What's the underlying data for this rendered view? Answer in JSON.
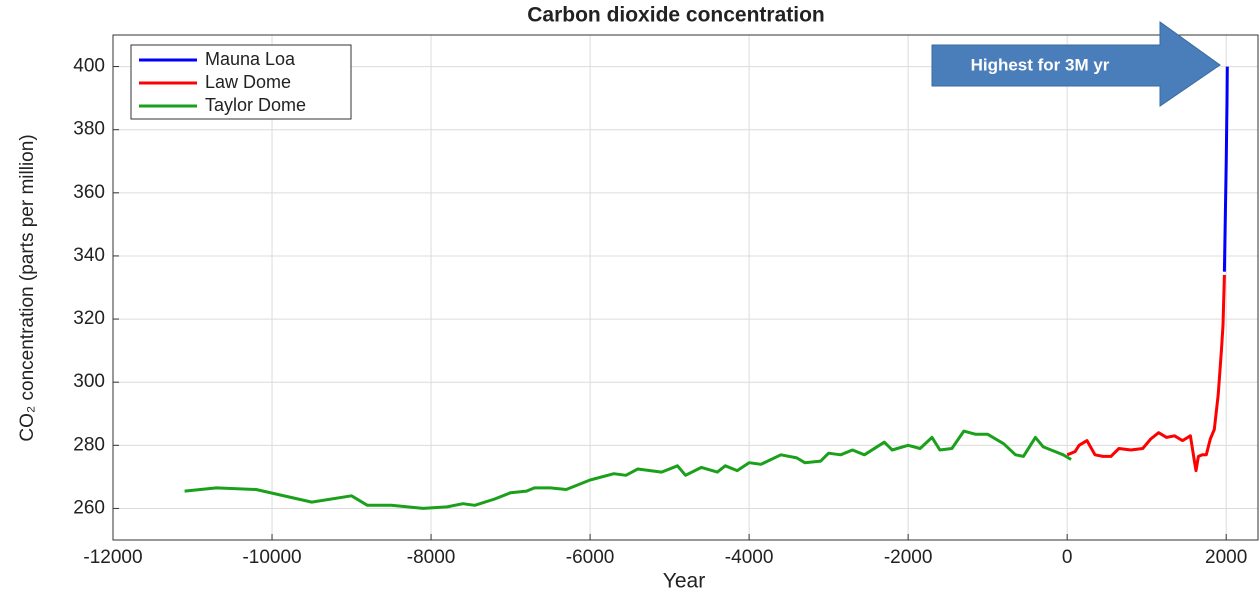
{
  "chart_data": {
    "type": "line",
    "title": "Carbon dioxide concentration",
    "x_label": "Year",
    "y_label": "CO₂ concentration (parts per million)",
    "annotation": "Highest for 3M yr",
    "xlim": [
      -12000,
      2400
    ],
    "ylim": [
      250,
      410
    ],
    "xticks": [
      -12000,
      -10000,
      -8000,
      -6000,
      -4000,
      -2000,
      0,
      2000
    ],
    "yticks": [
      260,
      280,
      300,
      320,
      340,
      360,
      380,
      400
    ],
    "grid": true,
    "legend": "upper left",
    "series": [
      {
        "name": "Mauna Loa",
        "color": "#0000ff",
        "x": [
          1978,
          1990,
          2000,
          2010,
          2014
        ],
        "values": [
          335,
          354,
          369,
          389,
          400
        ]
      },
      {
        "name": "Law Dome",
        "color": "#ff0000",
        "x": [
          0,
          100,
          150,
          250,
          350,
          450,
          550,
          650,
          800,
          950,
          1050,
          1150,
          1250,
          1350,
          1450,
          1550,
          1600,
          1620,
          1650,
          1700,
          1750,
          1800,
          1850,
          1900,
          1940,
          1960,
          1978
        ],
        "values": [
          277,
          278,
          280,
          281.5,
          277,
          276.5,
          276.5,
          279,
          278.5,
          279,
          282,
          284,
          282.5,
          283,
          281.5,
          283,
          275,
          272,
          276.5,
          277,
          277,
          282,
          285,
          296,
          310,
          318,
          334
        ]
      },
      {
        "name": "Taylor Dome",
        "color": "#1aa01a",
        "x": [
          -11100,
          -10700,
          -10200,
          -9500,
          -9000,
          -8800,
          -8500,
          -8100,
          -7800,
          -7600,
          -7450,
          -7200,
          -7000,
          -6800,
          -6700,
          -6500,
          -6300,
          -6000,
          -5700,
          -5550,
          -5400,
          -5100,
          -4900,
          -4800,
          -4600,
          -4400,
          -4300,
          -4150,
          -4000,
          -3850,
          -3600,
          -3400,
          -3300,
          -3100,
          -3000,
          -2850,
          -2700,
          -2550,
          -2300,
          -2200,
          -2000,
          -1850,
          -1700,
          -1600,
          -1450,
          -1300,
          -1150,
          -1000,
          -800,
          -650,
          -550,
          -400,
          -300,
          -150,
          -50,
          50
        ],
        "values": [
          265.5,
          266.5,
          266,
          262,
          264,
          261,
          261,
          260,
          260.5,
          261.5,
          261,
          263,
          265,
          265.5,
          266.5,
          266.5,
          266,
          269,
          271,
          270.5,
          272.5,
          271.5,
          273.5,
          270.5,
          273,
          271.5,
          273.5,
          272,
          274.5,
          274,
          277,
          276,
          274.5,
          275,
          277.5,
          277,
          278.5,
          277,
          281,
          278.5,
          280,
          279,
          282.5,
          278.5,
          279,
          284.5,
          283.5,
          283.5,
          280.5,
          277,
          276.5,
          282.5,
          279.5,
          278,
          277,
          275.5
        ]
      }
    ]
  }
}
